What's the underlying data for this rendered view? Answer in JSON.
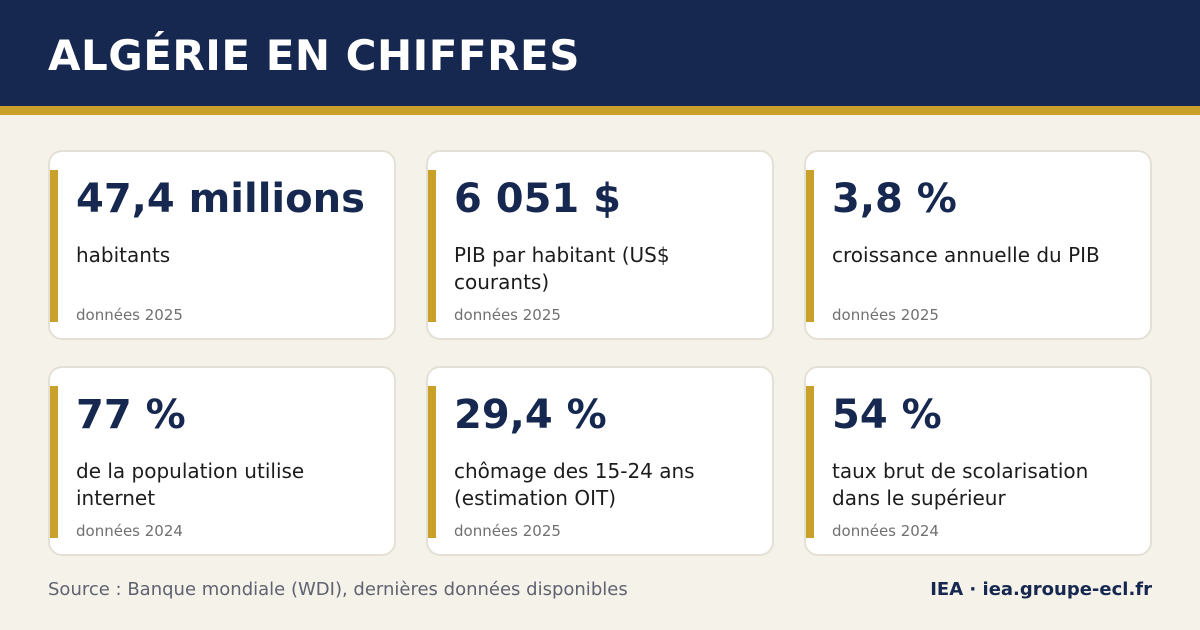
{
  "header": {
    "title": "ALGÉRIE EN CHIFFRES"
  },
  "cards": [
    {
      "value": "47,4 millions",
      "label": "habitants",
      "note": "données 2025"
    },
    {
      "value": "6 051 $",
      "label": "PIB par habitant (US$ courants)",
      "note": "données 2025"
    },
    {
      "value": "3,8 %",
      "label": "croissance annuelle du PIB",
      "note": "données 2025"
    },
    {
      "value": "77 %",
      "label": "de la population utilise internet",
      "note": "données 2024"
    },
    {
      "value": "29,4 %",
      "label": "chômage des 15-24 ans (estimation OIT)",
      "note": "données 2025"
    },
    {
      "value": "54 %",
      "label": "taux brut de scolarisation dans le supérieur",
      "note": "données 2024"
    }
  ],
  "footer": {
    "source": "Source : Banque mondiale (WDI), dernières données disponibles",
    "brand": "IEA · iea.groupe-ecl.fr"
  },
  "colors": {
    "navy": "#16284f",
    "gold": "#c9a02a",
    "background": "#f5f2ea"
  }
}
